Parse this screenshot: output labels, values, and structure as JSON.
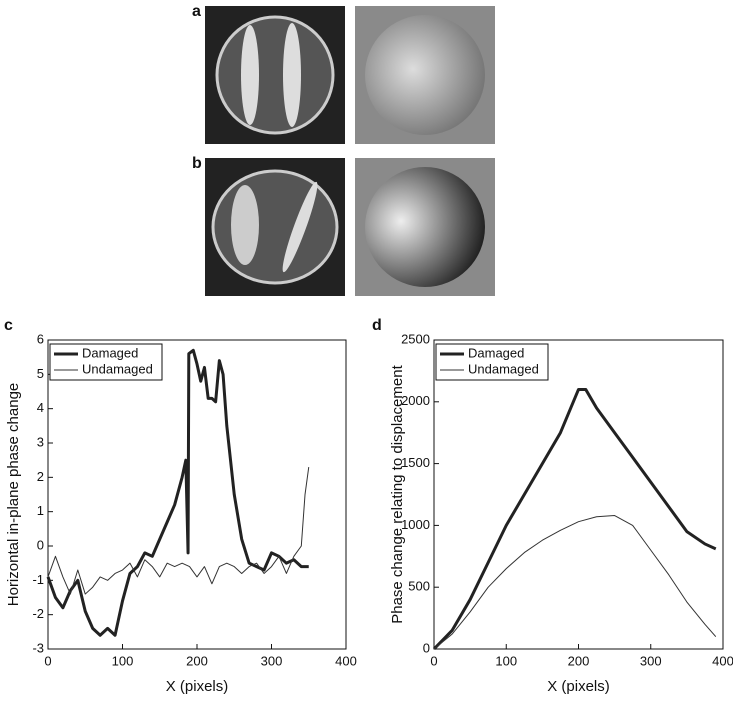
{
  "panel_labels": [
    "a",
    "b",
    "c",
    "d"
  ],
  "chart_data": [
    {
      "type": "line",
      "xlabel": "X (pixels)",
      "ylabel": "Horizontal in-plane phase change",
      "xlim": [
        0,
        400
      ],
      "xticks": [
        0,
        100,
        200,
        300,
        400
      ],
      "ylim": [
        -3,
        6
      ],
      "yticks": [
        -3,
        -2,
        -1,
        0,
        1,
        2,
        3,
        4,
        5,
        6
      ],
      "legend": "upper left",
      "series": [
        {
          "name": "Damaged",
          "color": "#222222",
          "linewidth": 3,
          "x": [
            0,
            10,
            20,
            30,
            40,
            50,
            60,
            70,
            80,
            90,
            100,
            110,
            120,
            130,
            140,
            150,
            160,
            170,
            180,
            185,
            188,
            189,
            195,
            200,
            205,
            210,
            215,
            220,
            225,
            230,
            235,
            240,
            250,
            260,
            270,
            280,
            290,
            300,
            310,
            320,
            330,
            340,
            350
          ],
          "values": [
            -0.9,
            -1.5,
            -1.8,
            -1.3,
            -1.0,
            -1.9,
            -2.4,
            -2.6,
            -2.4,
            -2.6,
            -1.6,
            -0.8,
            -0.6,
            -0.2,
            -0.3,
            0.2,
            0.7,
            1.2,
            2.0,
            2.5,
            -0.2,
            5.6,
            5.7,
            5.3,
            4.8,
            5.2,
            4.3,
            4.3,
            4.2,
            5.4,
            5.0,
            3.5,
            1.5,
            0.2,
            -0.5,
            -0.6,
            -0.7,
            -0.2,
            -0.3,
            -0.5,
            -0.4,
            -0.6,
            -0.6
          ]
        },
        {
          "name": "Undamaged",
          "color": "#333333",
          "linewidth": 1,
          "x": [
            0,
            10,
            20,
            30,
            40,
            50,
            60,
            70,
            80,
            90,
            100,
            110,
            120,
            130,
            140,
            150,
            160,
            170,
            180,
            190,
            200,
            210,
            220,
            230,
            240,
            250,
            260,
            270,
            280,
            290,
            300,
            310,
            320,
            330,
            340,
            345,
            350
          ],
          "values": [
            -0.9,
            -0.3,
            -0.9,
            -1.4,
            -0.7,
            -1.4,
            -1.2,
            -0.9,
            -1.0,
            -0.8,
            -0.7,
            -0.5,
            -0.9,
            -0.4,
            -0.6,
            -0.9,
            -0.5,
            -0.6,
            -0.5,
            -0.6,
            -0.9,
            -0.6,
            -1.1,
            -0.6,
            -0.5,
            -0.6,
            -0.8,
            -0.6,
            -0.5,
            -0.8,
            -0.6,
            -0.3,
            -0.8,
            -0.3,
            0.0,
            1.5,
            2.3
          ]
        }
      ]
    },
    {
      "type": "line",
      "xlabel": "X (pixels)",
      "ylabel": "Phase change relating to displacement",
      "xlim": [
        0,
        400
      ],
      "xticks": [
        0,
        100,
        200,
        300,
        400
      ],
      "ylim": [
        0,
        2500
      ],
      "yticks": [
        0,
        500,
        1000,
        1500,
        2000,
        2500
      ],
      "legend": "upper left",
      "series": [
        {
          "name": "Damaged",
          "color": "#222222",
          "linewidth": 3,
          "x": [
            0,
            25,
            50,
            75,
            100,
            125,
            150,
            175,
            200,
            210,
            225,
            250,
            275,
            300,
            325,
            350,
            375,
            390
          ],
          "values": [
            0,
            150,
            400,
            700,
            1000,
            1250,
            1500,
            1750,
            2100,
            2100,
            1950,
            1750,
            1550,
            1350,
            1150,
            950,
            850,
            810
          ]
        },
        {
          "name": "Undamaged",
          "color": "#333333",
          "linewidth": 1,
          "x": [
            0,
            25,
            50,
            75,
            100,
            125,
            150,
            175,
            200,
            225,
            250,
            275,
            300,
            325,
            350,
            375,
            390
          ],
          "values": [
            0,
            120,
            300,
            500,
            650,
            780,
            880,
            960,
            1030,
            1070,
            1080,
            1000,
            800,
            600,
            380,
            200,
            100
          ]
        }
      ]
    }
  ]
}
